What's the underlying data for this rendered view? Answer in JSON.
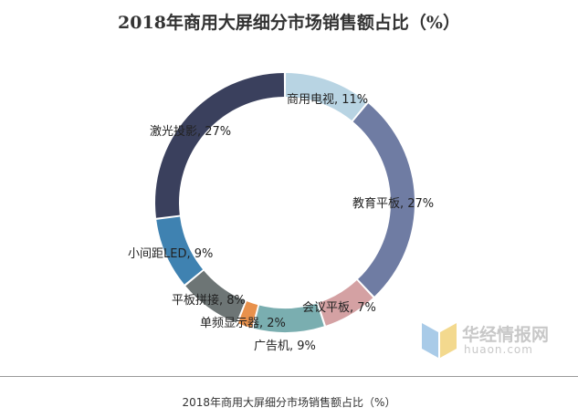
{
  "chart_data": {
    "type": "pie",
    "variant": "donut",
    "title": "2018年商用大屏细分市场销售额占比（%）",
    "unit": "%",
    "slices": [
      {
        "label": "商用电视, 11%",
        "value": 11,
        "color": "#b8d4e3"
      },
      {
        "label": "教育平板, 27%",
        "value": 27,
        "color": "#6f7ca3"
      },
      {
        "label": "会议平板, 7%",
        "value": 7,
        "color": "#d4a1a3"
      },
      {
        "label": "广告机, 9%",
        "value": 9,
        "color": "#7aaeb0"
      },
      {
        "label": "单频显示器, 2%",
        "value": 2,
        "color": "#e8914c"
      },
      {
        "label": "平板拼接, 8%",
        "value": 8,
        "color": "#6d7575"
      },
      {
        "label": "小间距LED, 9%",
        "value": 9,
        "color": "#3f82b1"
      },
      {
        "label": "激光投影, 27%",
        "value": 27,
        "color": "#3a405d"
      }
    ]
  },
  "watermark": {
    "name": "华经情报网",
    "url": "huaon.com"
  },
  "caption": "2018年商用大屏细分市场销售额占比（%）"
}
